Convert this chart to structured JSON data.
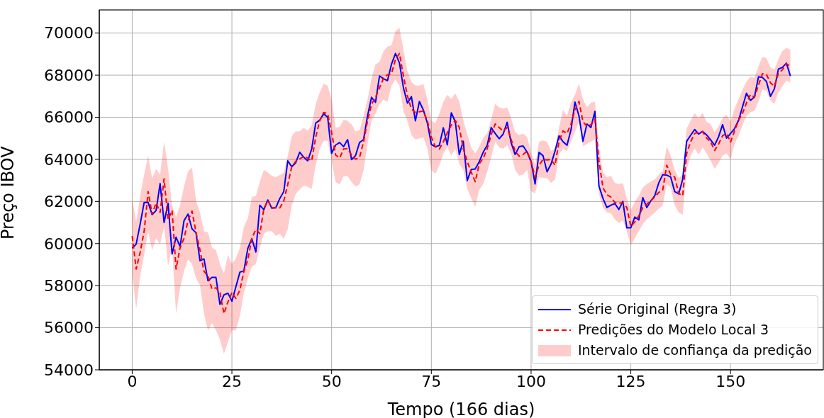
{
  "chart_data": {
    "type": "line",
    "xlabel": "Tempo (166 dias)",
    "ylabel": "Preço IBOV",
    "xlim": [
      -8.25,
      173.25
    ],
    "xticks": [
      0,
      25,
      50,
      75,
      100,
      125,
      150
    ],
    "ylim": [
      54000,
      71100
    ],
    "yticks": [
      54000,
      56000,
      58000,
      60000,
      62000,
      64000,
      66000,
      68000,
      70000
    ],
    "grid": true,
    "legend": "bottom right",
    "annotations": [
      "Intervalo de confiança da predição"
    ],
    "x": [
      0,
      1,
      2,
      3,
      4,
      5,
      6,
      7,
      8,
      9,
      10,
      11,
      12,
      13,
      14,
      15,
      16,
      17,
      18,
      19,
      20,
      21,
      22,
      23,
      24,
      25,
      26,
      27,
      28,
      29,
      30,
      31,
      32,
      33,
      34,
      35,
      36,
      37,
      38,
      39,
      40,
      41,
      42,
      43,
      44,
      45,
      46,
      47,
      48,
      49,
      50,
      51,
      52,
      53,
      54,
      55,
      56,
      57,
      58,
      59,
      60,
      61,
      62,
      63,
      64,
      65,
      66,
      67,
      68,
      69,
      70,
      71,
      72,
      73,
      74,
      75,
      76,
      77,
      78,
      79,
      80,
      81,
      82,
      83,
      84,
      85,
      86,
      87,
      88,
      89,
      90,
      91,
      92,
      93,
      94,
      95,
      96,
      97,
      98,
      99,
      100,
      101,
      102,
      103,
      104,
      105,
      106,
      107,
      108,
      109,
      110,
      111,
      112,
      113,
      114,
      115,
      116,
      117,
      118,
      119,
      120,
      121,
      122,
      123,
      124,
      125,
      126,
      127,
      128,
      129,
      130,
      131,
      132,
      133,
      134,
      135,
      136,
      137,
      138,
      139,
      140,
      141,
      142,
      143,
      144,
      145,
      146,
      147,
      148,
      149,
      150,
      151,
      152,
      153,
      154,
      155,
      156,
      157,
      158,
      159,
      160,
      161,
      162,
      163,
      164,
      165
    ],
    "series": [
      {
        "name": "Série Original (Regra 3)",
        "color": "#0000ff",
        "line_style": "solid",
        "values": [
          59780,
          59970,
          60920,
          61950,
          61950,
          61370,
          61570,
          62850,
          61000,
          61910,
          59500,
          60300,
          59860,
          61090,
          61400,
          60700,
          60510,
          59180,
          59270,
          58230,
          58390,
          58390,
          57110,
          57560,
          57640,
          57260,
          57950,
          58640,
          58700,
          59780,
          60230,
          59600,
          61820,
          61610,
          62070,
          61680,
          61700,
          62140,
          62470,
          63930,
          63650,
          63840,
          64340,
          64100,
          63930,
          64490,
          65720,
          65860,
          66170,
          66000,
          64290,
          64680,
          64800,
          64600,
          64940,
          63990,
          64180,
          64800,
          64940,
          66060,
          66950,
          66710,
          67960,
          67830,
          67740,
          68520,
          69030,
          68580,
          67400,
          66670,
          66980,
          65830,
          66750,
          66340,
          65720,
          64710,
          64600,
          64660,
          65500,
          64690,
          66210,
          65790,
          64230,
          64860,
          62990,
          63520,
          63540,
          63890,
          64340,
          64670,
          65510,
          65230,
          64980,
          65200,
          65760,
          64790,
          64230,
          64600,
          64640,
          64340,
          63890,
          62830,
          64330,
          64170,
          63410,
          63780,
          64390,
          65120,
          64840,
          64670,
          65400,
          66720,
          66070,
          64860,
          65680,
          65510,
          66280,
          62740,
          62150,
          61710,
          61820,
          61900,
          61620,
          62000,
          60750,
          60750,
          61260,
          61120,
          62180,
          61710,
          62020,
          62270,
          62880,
          63270,
          63250,
          63160,
          62470,
          62360,
          63050,
          64860,
          65140,
          65420,
          65200,
          65330,
          65160,
          64930,
          64670,
          65070,
          65650,
          65010,
          65230,
          65460,
          65850,
          66500,
          67140,
          66800,
          66970,
          67920,
          67890,
          67700,
          66990,
          67360,
          68290,
          68370,
          68570,
          67960
        ]
      },
      {
        "name": "Predições do Modelo Local 3",
        "color": "#ff0000",
        "line_style": "dashed",
        "values": [
          60360,
          58790,
          59580,
          60580,
          62470,
          61390,
          61930,
          61480,
          63070,
          61140,
          61570,
          58790,
          59800,
          60250,
          61090,
          61540,
          60530,
          59690,
          58680,
          58460,
          57840,
          57900,
          57670,
          56670,
          57230,
          57670,
          57390,
          57790,
          58680,
          59240,
          60250,
          60670,
          60470,
          61650,
          62040,
          61700,
          61700,
          61690,
          62030,
          62810,
          63650,
          63910,
          64020,
          64150,
          64060,
          63930,
          65050,
          65830,
          66230,
          66170,
          65270,
          64210,
          64060,
          64490,
          64510,
          64210,
          64010,
          64100,
          64830,
          65830,
          66620,
          66950,
          67400,
          67850,
          68020,
          68070,
          68750,
          69030,
          67960,
          67010,
          66390,
          66230,
          66260,
          66300,
          65830,
          65050,
          64600,
          64490,
          64830,
          65270,
          65630,
          65850,
          65510,
          64510,
          63890,
          63390,
          62940,
          63780,
          64060,
          64510,
          65180,
          65680,
          65510,
          65350,
          65510,
          64950,
          64390,
          64150,
          64230,
          64390,
          63890,
          63160,
          63720,
          64000,
          63970,
          64000,
          63720,
          64840,
          65350,
          65230,
          65680,
          66350,
          66750,
          65790,
          65570,
          65650,
          65910,
          63950,
          62660,
          62320,
          62210,
          61950,
          61930,
          61930,
          61710,
          60810,
          61030,
          61310,
          61710,
          61870,
          62040,
          62210,
          62430,
          62540,
          63720,
          63270,
          63160,
          62380,
          62270,
          64280,
          64840,
          65230,
          65290,
          65310,
          65010,
          64840,
          64420,
          64730,
          65120,
          65230,
          64820,
          65350,
          65850,
          66190,
          66690,
          67080,
          66950,
          67530,
          68070,
          68030,
          67640,
          67470,
          68090,
          68260,
          68540,
          68430
        ],
        "lower": [
          58570,
          56890,
          58460,
          59460,
          60580,
          59690,
          60250,
          59970,
          60810,
          58960,
          59800,
          56670,
          57900,
          58680,
          59240,
          59020,
          58350,
          58010,
          56670,
          55880,
          56220,
          55880,
          55430,
          54760,
          55320,
          55880,
          55880,
          56560,
          57670,
          58350,
          58900,
          59020,
          59800,
          60470,
          60580,
          60580,
          60360,
          60460,
          60230,
          60680,
          61800,
          62360,
          62560,
          62750,
          62700,
          62590,
          63710,
          64490,
          64880,
          64880,
          63930,
          62920,
          62810,
          63200,
          63200,
          62920,
          62700,
          62810,
          63480,
          64710,
          65830,
          66170,
          66620,
          66840,
          66730,
          67510,
          67790,
          67510,
          66280,
          65830,
          65160,
          64940,
          64990,
          65050,
          64490,
          63480,
          63310,
          63710,
          64270,
          64600,
          64170,
          64510,
          63780,
          63500,
          62600,
          62150,
          61760,
          62540,
          62830,
          63390,
          64110,
          64840,
          64560,
          64510,
          64670,
          64280,
          63500,
          63220,
          63270,
          63500,
          62490,
          62380,
          63160,
          63110,
          63110,
          62880,
          63050,
          64230,
          64510,
          64390,
          64840,
          65290,
          65790,
          64620,
          64730,
          64840,
          64950,
          62380,
          61710,
          61480,
          61430,
          61150,
          60980,
          61100,
          60590,
          59920,
          60250,
          60590,
          60920,
          61150,
          61310,
          61480,
          61650,
          61820,
          62830,
          62660,
          61820,
          61480,
          61370,
          63500,
          64170,
          64510,
          64230,
          64560,
          64280,
          63950,
          63550,
          63830,
          64170,
          64280,
          64000,
          64730,
          65120,
          65630,
          66070,
          66240,
          66300,
          66750,
          67310,
          67250,
          66800,
          66630,
          67190,
          67470,
          67750,
          67640
        ],
        "upper": [
          62150,
          61030,
          62260,
          63270,
          64170,
          63100,
          63550,
          63270,
          64840,
          63550,
          61820,
          61260,
          61820,
          62710,
          63440,
          63610,
          62040,
          61480,
          60580,
          60530,
          59800,
          59690,
          59020,
          58570,
          59460,
          59020,
          59300,
          59800,
          60810,
          61200,
          62210,
          62260,
          62940,
          63500,
          63380,
          63220,
          63160,
          63260,
          63370,
          64150,
          65110,
          65330,
          65330,
          65500,
          65360,
          65610,
          66620,
          67180,
          67600,
          67510,
          66840,
          65500,
          65550,
          65890,
          65830,
          65660,
          65330,
          65390,
          66060,
          66840,
          67850,
          68520,
          68630,
          69140,
          69360,
          69420,
          70090,
          70260,
          69200,
          68190,
          67680,
          67510,
          67510,
          67570,
          66840,
          65830,
          65720,
          66170,
          66730,
          67070,
          66860,
          67140,
          66750,
          65850,
          65180,
          64560,
          64280,
          64620,
          65010,
          65230,
          65910,
          66640,
          66470,
          66410,
          66470,
          65960,
          65290,
          65160,
          65230,
          65070,
          64340,
          63720,
          64840,
          64900,
          64840,
          64390,
          64510,
          65510,
          66350,
          66070,
          66690,
          67080,
          67590,
          66860,
          66470,
          66690,
          66750,
          64620,
          63390,
          63160,
          63220,
          62880,
          62830,
          62880,
          62150,
          61600,
          61990,
          62270,
          62660,
          62830,
          62940,
          63050,
          63270,
          63440,
          64620,
          64170,
          63500,
          63110,
          63270,
          65460,
          65850,
          66190,
          65960,
          66210,
          65790,
          65680,
          65290,
          65570,
          65960,
          66130,
          65790,
          66410,
          66860,
          67310,
          67700,
          67920,
          67870,
          68430,
          68870,
          68810,
          68370,
          68260,
          68760,
          69150,
          69300,
          69210
        ]
      }
    ]
  }
}
